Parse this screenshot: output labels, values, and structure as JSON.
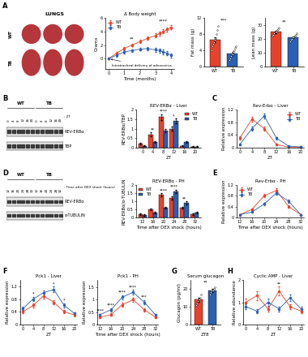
{
  "panel_labels": [
    "A",
    "B",
    "C",
    "D",
    "E",
    "F",
    "G",
    "H"
  ],
  "photo": {
    "title": "LUNGS",
    "rows": [
      "WT",
      "TB"
    ]
  },
  "blots": [
    {
      "groups": [
        "WT",
        "TB"
      ],
      "lanes": [
        0,
        4,
        8,
        12,
        16,
        20,
        0,
        4,
        8,
        12,
        16,
        20
      ],
      "lane_title": ": ZT",
      "bands": [
        "REV-ERBα",
        "TBP"
      ]
    },
    {
      "groups": [
        "WT",
        "TB"
      ],
      "lanes": [
        12,
        16,
        20,
        24,
        28,
        32,
        12,
        16,
        20,
        24,
        28,
        32
      ],
      "lane_title": ": Time after DEX shock (hours)",
      "bands": [
        "REV-ERBα",
        "α-TUBULIN"
      ]
    }
  ],
  "chart_data": [
    {
      "type": "line",
      "title": "Δ Body weight",
      "xlabel": "Time (months)",
      "ylabel": "Grams",
      "x": [
        0,
        0.5,
        1,
        1.5,
        2,
        2.5,
        3,
        3.25,
        3.5,
        3.75,
        4
      ],
      "series": [
        {
          "name": "WT",
          "color": "#e8412b",
          "values": [
            0,
            0.8,
            1.5,
            2.0,
            2.5,
            3.0,
            3.4,
            3.7,
            4.0,
            4.3,
            4.6
          ],
          "errors": [
            0.1,
            0.2,
            0.2,
            0.2,
            0.25,
            0.25,
            0.3,
            0.3,
            0.3,
            0.3,
            0.3
          ]
        },
        {
          "name": "TB",
          "color": "#2b5fb5",
          "values": [
            0,
            0.5,
            1.0,
            1.2,
            1.4,
            1.5,
            1.3,
            1.2,
            1.0,
            0.8,
            0.5
          ],
          "errors": [
            0.1,
            0.2,
            0.2,
            0.2,
            0.2,
            0.25,
            0.25,
            0.3,
            0.3,
            0.3,
            0.3
          ]
        }
      ],
      "xlim": [
        -0.2,
        4.2
      ],
      "xticks": [
        0,
        1,
        2,
        3,
        4
      ],
      "ylim": [
        -1.5,
        6
      ],
      "yticks": [
        0,
        2,
        4,
        6
      ],
      "marker": "o",
      "legend": "upper left",
      "annotations": [
        {
          "text": "**",
          "x": 1.5,
          "y": 2.6
        },
        {
          "text": "****",
          "x": 3.5,
          "y": 5.2
        },
        {
          "text": "Intratracheal delivery of adenovirus",
          "x": 0.2,
          "y": -1.0,
          "point": [
            0,
            0
          ]
        }
      ]
    },
    {
      "type": "bar",
      "ylabel": "Fat mass (g)",
      "categories": [
        "WT",
        "TB"
      ],
      "values": [
        6.5,
        3.2
      ],
      "errors": [
        0.6,
        0.4
      ],
      "colors": [
        "#e8412b",
        "#2b5fb5"
      ],
      "points": [
        [
          4,
          5,
          5.5,
          6,
          6.5,
          7,
          7,
          8,
          9,
          10
        ],
        [
          1.5,
          2,
          2.5,
          3,
          3,
          3.5,
          4,
          4.5,
          5
        ]
      ],
      "ylim": [
        0,
        12
      ],
      "yticks": [
        0,
        4,
        8,
        12
      ],
      "annotations": [
        {
          "text": "***",
          "x": 0.5,
          "y": 10.8
        }
      ]
    },
    {
      "type": "bar",
      "ylabel": "Lean mass (g)",
      "categories": [
        "WT",
        "TB"
      ],
      "values": [
        25,
        21
      ],
      "errors": [
        0.8,
        0.8
      ],
      "colors": [
        "#e8412b",
        "#2b5fb5"
      ],
      "points": [
        [
          22,
          23,
          24,
          25,
          25,
          26,
          27,
          28
        ],
        [
          18,
          19,
          20,
          21,
          21,
          22,
          23,
          24
        ]
      ],
      "ylim": [
        0,
        35
      ],
      "yticks": [
        0,
        10,
        20,
        30
      ],
      "annotations": [
        {
          "text": "**",
          "x": 0.5,
          "y": 30.5
        }
      ]
    },
    {
      "type": "bar",
      "title": "REV-ERBα - Liver",
      "xlabel": "ZT",
      "ylabel": "REV-ERBα/TBP",
      "categories": [
        "0",
        "4",
        "8",
        "12",
        "16",
        "20"
      ],
      "series": [
        {
          "name": "WT",
          "color": "#e8412b",
          "values": [
            0.2,
            0.7,
            1.6,
            1.0,
            0.1,
            0.05
          ],
          "errors": [
            0.05,
            0.1,
            0.15,
            0.1,
            0.03,
            0.02
          ]
        },
        {
          "name": "TB",
          "color": "#2b5fb5",
          "values": [
            0.1,
            0.3,
            0.9,
            1.4,
            0.3,
            0.05
          ],
          "errors": [
            0.03,
            0.05,
            0.1,
            0.12,
            0.05,
            0.02
          ]
        }
      ],
      "significance": [
        null,
        "**",
        "****",
        "*",
        null,
        null
      ],
      "ylim": [
        0,
        2
      ],
      "yticks": [
        0,
        0.5,
        1,
        1.5,
        2
      ],
      "legend": "upper right"
    },
    {
      "type": "line",
      "title": "Rev-Erbα - Liver",
      "xlabel": "ZT",
      "ylabel": "Relative expression",
      "x": [
        0,
        4,
        8,
        12,
        16,
        20
      ],
      "series": [
        {
          "name": "WT",
          "color": "#e8412b",
          "values": [
            0.3,
            0.9,
            0.6,
            0.1,
            0.02,
            0.02
          ],
          "errors": [
            0.05,
            0.08,
            0.06,
            0.02,
            0.01,
            0.01
          ]
        },
        {
          "name": "TB",
          "color": "#2b5fb5",
          "values": [
            0.1,
            0.6,
            1.0,
            0.3,
            0.05,
            0.02
          ],
          "errors": [
            0.03,
            0.06,
            0.08,
            0.04,
            0.01,
            0.01
          ]
        }
      ],
      "xlim": [
        -1,
        21
      ],
      "xticks": [
        0,
        4,
        8,
        12,
        16,
        20
      ],
      "ylim": [
        0,
        1.2
      ],
      "yticks": [
        0,
        0.4,
        0.8,
        1.2
      ],
      "marker": "o",
      "legend": "upper right"
    },
    {
      "type": "bar",
      "title": "REV-ERBα - PH",
      "xlabel": "Time after DEX shock (hours)",
      "ylabel": "REV-ERBα/α-TUBULIN",
      "categories": [
        "12",
        "16",
        "20",
        "24",
        "28",
        "32"
      ],
      "series": [
        {
          "name": "WT",
          "color": "#e8412b",
          "values": [
            0.2,
            0.5,
            1.4,
            1.2,
            0.6,
            0.2
          ],
          "errors": [
            0.04,
            0.06,
            0.1,
            0.1,
            0.06,
            0.04
          ]
        },
        {
          "name": "TB",
          "color": "#2b5fb5",
          "values": [
            0.15,
            0.3,
            0.6,
            1.6,
            0.9,
            0.3
          ],
          "errors": [
            0.03,
            0.05,
            0.06,
            0.12,
            0.08,
            0.04
          ]
        }
      ],
      "significance": [
        null,
        null,
        "****",
        "****",
        "**",
        null
      ],
      "ylim": [
        0,
        2
      ],
      "yticks": [
        0,
        0.5,
        1,
        1.5,
        2
      ],
      "legend": "upper left"
    },
    {
      "type": "line",
      "title": "Rev-Erbα - PH",
      "xlabel": "Time after DEX shock (hours)",
      "ylabel": "Relative expression",
      "x": [
        12,
        16,
        20,
        24,
        28,
        32
      ],
      "series": [
        {
          "name": "WT",
          "color": "#e8412b",
          "values": [
            0.1,
            0.3,
            0.8,
            1.0,
            0.4,
            0.1
          ],
          "errors": [
            0.02,
            0.04,
            0.06,
            0.08,
            0.05,
            0.02
          ]
        },
        {
          "name": "TB",
          "color": "#2b5fb5",
          "values": [
            0.1,
            0.2,
            0.5,
            0.9,
            0.6,
            0.1
          ],
          "errors": [
            0.02,
            0.03,
            0.05,
            0.07,
            0.05,
            0.02
          ]
        }
      ],
      "xlim": [
        11,
        33
      ],
      "xticks": [
        12,
        16,
        20,
        24,
        28,
        32
      ],
      "ylim": [
        0,
        1.2
      ],
      "yticks": [
        0,
        0.4,
        0.8,
        1.2
      ],
      "marker": "o",
      "legend": "upper left"
    },
    {
      "type": "line",
      "title": "Pck1 - Liver",
      "xlabel": "ZT",
      "ylabel": "Relative expression",
      "x": [
        0,
        4,
        8,
        12,
        16,
        20
      ],
      "series": [
        {
          "name": "WT",
          "color": "#e8412b",
          "values": [
            0.4,
            0.6,
            0.9,
            0.7,
            0.4,
            0.3
          ],
          "errors": [
            0.05,
            0.06,
            0.08,
            0.06,
            0.05,
            0.04
          ]
        },
        {
          "name": "TB",
          "color": "#2b5fb5",
          "values": [
            0.5,
            0.8,
            1.0,
            1.1,
            0.6,
            0.35
          ],
          "errors": [
            0.05,
            0.07,
            0.08,
            0.09,
            0.06,
            0.04
          ]
        }
      ],
      "significance": [
        null,
        "*",
        null,
        "*",
        "*",
        null
      ],
      "xlim": [
        -1,
        21
      ],
      "xticks": [
        0,
        4,
        8,
        12,
        16,
        20
      ],
      "ylim": [
        0,
        1.4
      ],
      "yticks": [
        0,
        0.4,
        0.8,
        1.2
      ],
      "marker": "o"
    },
    {
      "type": "line",
      "title": "Pck1 - PH",
      "xlabel": "Time after DEX shock (hours)",
      "ylabel": "Relative expression",
      "x": [
        12,
        16,
        20,
        24,
        28,
        32
      ],
      "series": [
        {
          "name": "WT",
          "color": "#e8412b",
          "values": [
            0.3,
            0.4,
            0.8,
            1.0,
            0.6,
            0.3
          ],
          "errors": [
            0.04,
            0.05,
            0.07,
            0.08,
            0.06,
            0.04
          ]
        },
        {
          "name": "TB",
          "color": "#2b5fb5",
          "values": [
            0.4,
            0.6,
            1.1,
            1.3,
            0.9,
            0.4
          ],
          "errors": [
            0.04,
            0.06,
            0.09,
            0.1,
            0.08,
            0.04
          ]
        }
      ],
      "significance": [
        "****",
        "****",
        "****",
        "****",
        "***",
        null
      ],
      "xlim": [
        11,
        33
      ],
      "xticks": [
        12,
        16,
        20,
        24,
        28,
        32
      ],
      "ylim": [
        0,
        1.8
      ],
      "yticks": [
        0,
        0.5,
        1,
        1.5
      ],
      "marker": "o"
    },
    {
      "type": "bar",
      "title": "Serum glucagon",
      "xlabel": "ZT8",
      "ylabel": "Glucagon (pg/ml)",
      "categories": [
        "WT",
        "TB"
      ],
      "values": [
        14,
        19
      ],
      "errors": [
        1.2,
        0.8
      ],
      "colors": [
        "#e8412b",
        "#2b5fb5"
      ],
      "points": [
        [
          11,
          12,
          13,
          14,
          15,
          17
        ],
        [
          17,
          18,
          19,
          19,
          20,
          21
        ]
      ],
      "ylim": [
        0,
        25
      ],
      "yticks": [
        0,
        10,
        20
      ],
      "annotations": [
        {
          "text": "**",
          "x": 0.5,
          "y": 22.5
        }
      ]
    },
    {
      "type": "line",
      "title": "Cyclic AMP - Liver",
      "xlabel": "ZT",
      "ylabel": "Relative abundance",
      "x": [
        0,
        4,
        8,
        12,
        16,
        20
      ],
      "series": [
        {
          "name": "WT",
          "color": "#e8412b",
          "values": [
            1.0,
            1.3,
            0.7,
            1.5,
            0.8,
            0.6
          ],
          "errors": [
            0.15,
            0.2,
            0.1,
            0.2,
            0.1,
            0.1
          ]
        },
        {
          "name": "TB",
          "color": "#2b5fb5",
          "values": [
            0.8,
            0.6,
            1.0,
            0.7,
            1.2,
            0.7
          ],
          "errors": [
            0.1,
            0.1,
            0.15,
            0.1,
            0.15,
            0.1
          ]
        }
      ],
      "significance": [
        null,
        null,
        null,
        "**",
        null,
        null
      ],
      "xlim": [
        -1,
        21
      ],
      "xticks": [
        0,
        4,
        8,
        12,
        16,
        20
      ],
      "ylim": [
        0,
        2
      ],
      "yticks": [
        0,
        1,
        2
      ],
      "marker": "o"
    }
  ]
}
